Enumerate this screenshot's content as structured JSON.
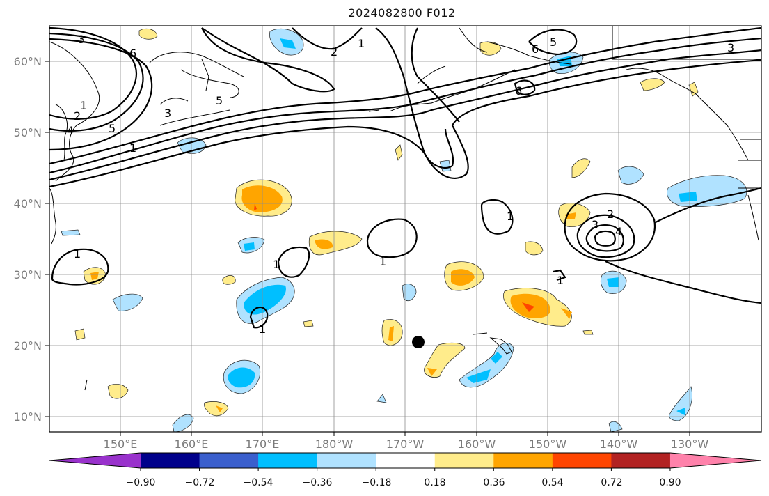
{
  "title": "2024082800 F012",
  "longitude_labels": [
    "150°E",
    "160°E",
    "170°E",
    "180°W",
    "170°W",
    "160°W",
    "150°W",
    "140°W",
    "130°W"
  ],
  "latitude_labels": [
    "60°N",
    "50°N",
    "40°N",
    "30°N",
    "20°N",
    "10°N"
  ],
  "colorbar": {
    "tick_labels": [
      "−0.90",
      "−0.72",
      "−0.54",
      "−0.36",
      "−0.18",
      "0.18",
      "0.36",
      "0.54",
      "0.72",
      "0.90"
    ],
    "colors": [
      "#9932cc",
      "#00008b",
      "#3a5fcd",
      "#00bfff",
      "#b0e2ff",
      "#ffffff",
      "#ffec8b",
      "#ffa500",
      "#ff4500",
      "#b22222",
      "#ff82ab"
    ]
  },
  "contour_labels": [
    "3",
    "6",
    "1",
    "2",
    "4",
    "5",
    "3",
    "5",
    "1",
    "2",
    "1",
    "5",
    "6",
    "6",
    "3",
    "1",
    "1",
    "1",
    "1",
    "2",
    "3",
    "4",
    "1",
    "1"
  ],
  "marker": "black dot near 20°N 168°W",
  "coastline_color": "#000000"
}
